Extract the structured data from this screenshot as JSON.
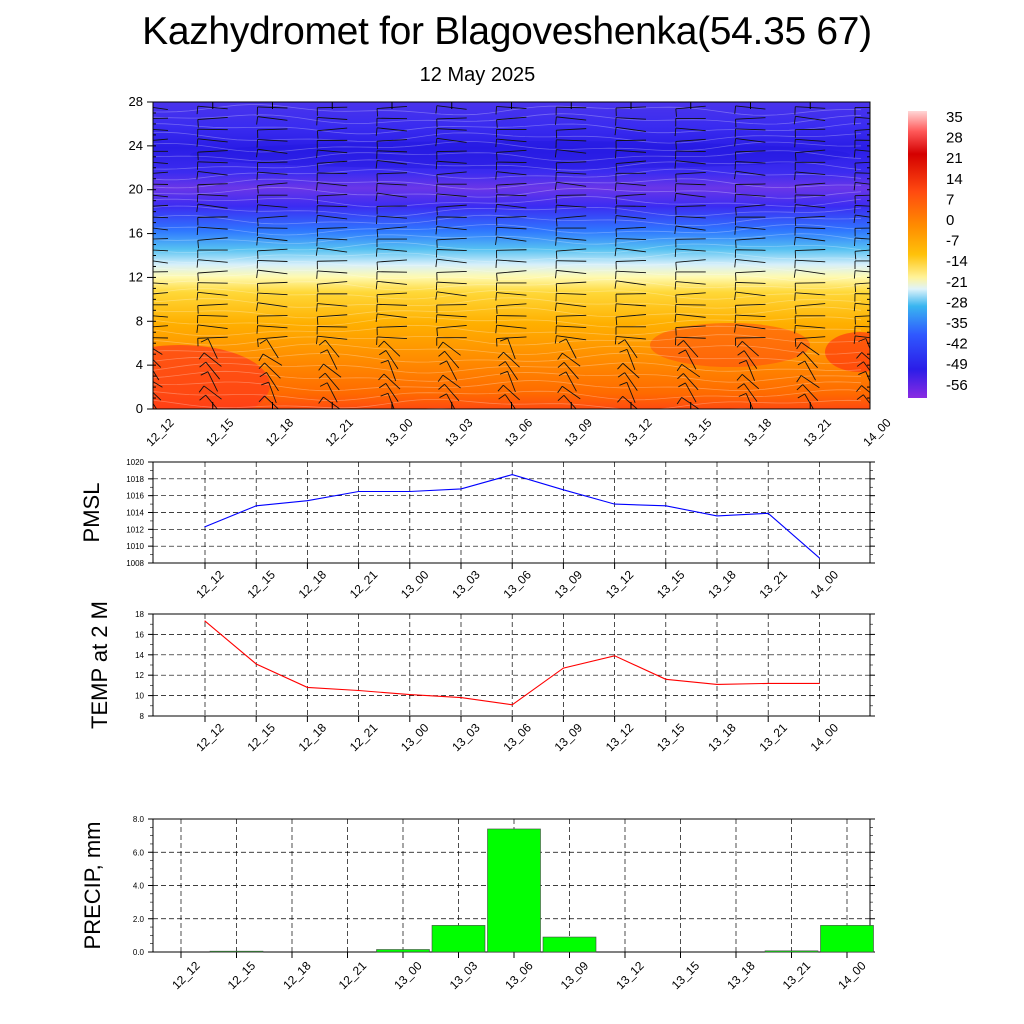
{
  "header": {
    "title": "Kazhydromet for Blagoveshenka(54.35 67)",
    "subtitle": "12 May 2025"
  },
  "chart_data": [
    {
      "type": "heatmap",
      "description_levels": "temperature cross-section with wind barbs",
      "x_ticks": [
        "12_12",
        "12_15",
        "12_18",
        "12_21",
        "13_00",
        "13_03",
        "13_06",
        "13_09",
        "13_12",
        "13_15",
        "13_18",
        "13_21",
        "14_00"
      ],
      "y_ticks": [
        "0",
        "4",
        "8",
        "12",
        "16",
        "20",
        "24",
        "28"
      ],
      "ylim": [
        0,
        28
      ],
      "colorbar_labels": [
        "35",
        "28",
        "21",
        "14",
        "7",
        "0",
        "-7",
        "-14",
        "-21",
        "-28",
        "-35",
        "-42",
        "-49",
        "-56"
      ],
      "colorbar_range": [
        -60,
        38
      ],
      "colors": [
        "#8a2be2",
        "#2b1de8",
        "#2f6bff",
        "#39b5f0",
        "#dff3fa",
        "#fff39a",
        "#ffc20a",
        "#ff8c00",
        "#ff4a10",
        "#d40000",
        "#ffd6d6"
      ]
    },
    {
      "type": "line",
      "ylabel": "PMSL",
      "categories": [
        "12_12",
        "12_15",
        "12_18",
        "12_21",
        "13_00",
        "13_03",
        "13_06",
        "13_09",
        "13_12",
        "13_15",
        "13_18",
        "13_21",
        "14_00"
      ],
      "values": [
        1012.3,
        1014.8,
        1015.4,
        1016.5,
        1016.5,
        1016.8,
        1018.5,
        1016.7,
        1015.0,
        1014.8,
        1013.6,
        1013.9,
        1008.6
      ],
      "ylim": [
        1008,
        1020
      ],
      "y_ticks": [
        "1008",
        "1010",
        "1012",
        "1014",
        "1016",
        "1018",
        "1020"
      ],
      "color": "#0000ff",
      "grid": true
    },
    {
      "type": "line",
      "ylabel": "TEMP at 2 M",
      "categories": [
        "12_12",
        "12_15",
        "12_18",
        "12_21",
        "13_00",
        "13_03",
        "13_06",
        "13_09",
        "13_12",
        "13_15",
        "13_18",
        "13_21",
        "14_00"
      ],
      "values": [
        17.3,
        13.1,
        10.8,
        10.5,
        10.1,
        9.8,
        9.1,
        12.7,
        13.9,
        11.6,
        11.1,
        11.2,
        11.2
      ],
      "ylim": [
        8,
        18
      ],
      "y_ticks": [
        "8",
        "10",
        "12",
        "14",
        "16",
        "18"
      ],
      "color": "#ff0000",
      "grid": true
    },
    {
      "type": "bar",
      "ylabel": "PRECIP, mm",
      "categories": [
        "12_12",
        "12_15",
        "12_18",
        "12_21",
        "13_00",
        "13_03",
        "13_06",
        "13_09",
        "13_12",
        "13_15",
        "13_18",
        "13_21",
        "14_00"
      ],
      "values": [
        0,
        0.05,
        0,
        0,
        0.15,
        1.6,
        7.4,
        0.9,
        0,
        0,
        0,
        0.07,
        1.6
      ],
      "ylim": [
        0,
        8
      ],
      "y_ticks": [
        "0.0",
        "2.0",
        "4.0",
        "6.0",
        "8.0"
      ],
      "color": "#00ff00",
      "grid": true
    }
  ]
}
